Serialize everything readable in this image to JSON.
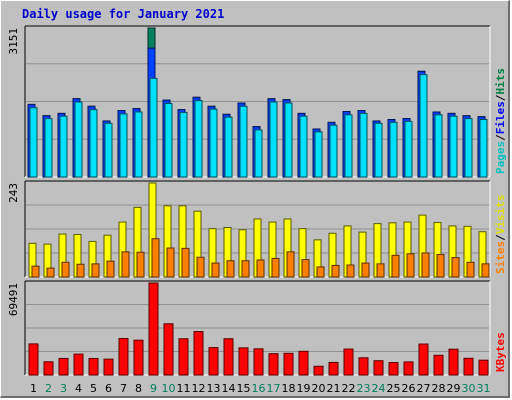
{
  "chart_data": {
    "type": "bar",
    "title": "Daily usage for January 2021",
    "x": [
      "1",
      "2",
      "3",
      "4",
      "5",
      "6",
      "7",
      "8",
      "9",
      "10",
      "11",
      "12",
      "13",
      "14",
      "15",
      "16",
      "17",
      "18",
      "19",
      "20",
      "21",
      "22",
      "23",
      "24",
      "25",
      "26",
      "27",
      "28",
      "29",
      "30",
      "31"
    ],
    "weekend_days": [
      2,
      3,
      9,
      10,
      16,
      17,
      23,
      24,
      30,
      31
    ],
    "panels": [
      {
        "id": "hits",
        "max_label": "3151",
        "max": 3151,
        "legend": [
          "Pages",
          "Files",
          "Hits"
        ],
        "series": [
          {
            "name": "Hits",
            "color": "#00805c",
            "values": [
              1535,
              1295,
              1345,
              1655,
              1495,
              1185,
              1405,
              1445,
              3151,
              1625,
              1425,
              1685,
              1495,
              1325,
              1565,
              1065,
              1655,
              1635,
              1345,
              1015,
              1155,
              1385,
              1405,
              1185,
              1215,
              1235,
              2235,
              1375,
              1345,
              1295,
              1275
            ]
          },
          {
            "name": "Files",
            "color": "#0040ff",
            "values": [
              1535,
              1295,
              1345,
              1655,
              1495,
              1185,
              1405,
              1445,
              2725,
              1625,
              1425,
              1685,
              1495,
              1325,
              1565,
              1065,
              1655,
              1635,
              1345,
              1015,
              1155,
              1385,
              1405,
              1185,
              1215,
              1235,
              2235,
              1375,
              1345,
              1295,
              1275
            ]
          },
          {
            "name": "Pages",
            "color": "#00e0ff",
            "values": [
              1465,
              1235,
              1285,
              1585,
              1425,
              1135,
              1335,
              1375,
              2085,
              1555,
              1365,
              1615,
              1435,
              1265,
              1495,
              995,
              1585,
              1565,
              1285,
              955,
              1095,
              1315,
              1345,
              1135,
              1155,
              1175,
              2165,
              1315,
              1285,
              1235,
              1215
            ]
          }
        ]
      },
      {
        "id": "visits",
        "max_label": "243",
        "max": 243,
        "legend": [
          "Sites",
          "Visits"
        ],
        "series": [
          {
            "name": "Visits",
            "color": "#ffff00",
            "values": [
              87,
              85,
              111,
              110,
              92,
              108,
              142,
              180,
              243,
              184,
              184,
              170,
              125,
              128,
              122,
              150,
              142,
              150,
              125,
              96,
              113,
              132,
              116,
              138,
              140,
              142,
              160,
              141,
              132,
              131,
              117
            ]
          },
          {
            "name": "Sites",
            "color": "#ff8000",
            "values": [
              28,
              23,
              38,
              33,
              34,
              41,
              65,
              64,
              99,
              75,
              74,
              51,
              36,
              42,
              42,
              44,
              48,
              65,
              45,
              26,
              30,
              31,
              36,
              34,
              56,
              60,
              62,
              58,
              50,
              38,
              34
            ]
          }
        ]
      },
      {
        "id": "kbytes",
        "max_label": "69491",
        "max": 69491,
        "legend": [
          "KBytes"
        ],
        "series": [
          {
            "name": "KBytes",
            "color": "#ff0000",
            "values": [
              23500,
              10000,
              12500,
              15800,
              12500,
              12000,
              27600,
              26300,
              69491,
              38700,
              27400,
              32800,
              20700,
              27400,
              20500,
              19800,
              16100,
              16400,
              17900,
              6600,
              9500,
              19600,
              13000,
              10800,
              9400,
              9900,
              23400,
              14900,
              19500,
              12600,
              11200
            ]
          }
        ]
      }
    ],
    "legend_colors": {
      "Pages": "#00c0c0",
      "Files": "#0000ff",
      "Hits": "#008040",
      "Sites": "#ff8000",
      "Visits": "#e0e000",
      "KBytes": "#ff0000"
    },
    "label_colors": {
      "weekday": "#000000",
      "weekend": "#00805c"
    }
  }
}
